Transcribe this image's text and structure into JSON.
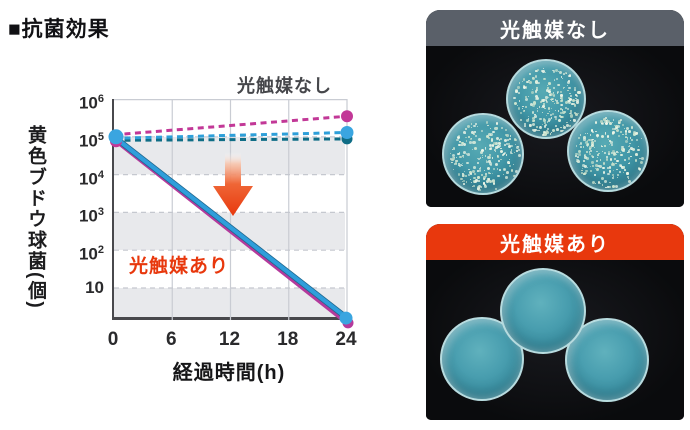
{
  "page": {
    "title": "■抗菌効果"
  },
  "chart": {
    "ylabel": "黄色ブドウ球菌(個)",
    "xlabel": "経過時間(h)",
    "labels": {
      "without": "光触媒なし",
      "with": "光触媒あり"
    },
    "colors": {
      "with_label": "#e8380d",
      "without_label": "#46474b",
      "arrow": "#e8380d"
    }
  },
  "chart_data": {
    "type": "line",
    "title": "抗菌効果",
    "xlabel": "経過時間(h)",
    "ylabel": "黄色ブドウ球菌(個)",
    "y_scale": "log",
    "xlim": [
      0,
      24
    ],
    "ylim": [
      1,
      1000000
    ],
    "x_ticks": [
      0,
      6,
      12,
      18,
      24
    ],
    "y_ticks": [
      1000000,
      100000,
      10000,
      1000,
      100,
      10
    ],
    "grid": true,
    "annotations": [
      {
        "text": "光触媒なし",
        "applies_to": "dashed series",
        "color": "#46474b"
      },
      {
        "text": "光触媒あり",
        "applies_to": "solid series",
        "color": "#e8380d"
      },
      {
        "icon": "decrease-arrow",
        "color": "#e8380d"
      }
    ],
    "series": [
      {
        "name": "光触媒なし A",
        "style": "dashed",
        "color": "#c23897",
        "x": [
          0,
          24
        ],
        "values": [
          100000,
          350000
        ]
      },
      {
        "name": "光触媒なし B",
        "style": "dashed",
        "color": "#2e9fd9",
        "x": [
          0,
          24
        ],
        "values": [
          100000,
          130000
        ]
      },
      {
        "name": "光触媒なし C",
        "style": "dashed",
        "color": "#0f6d86",
        "x": [
          0,
          24
        ],
        "values": [
          100000,
          88000
        ]
      },
      {
        "name": "光触媒あり A",
        "style": "solid",
        "color": "#b43a9c",
        "x": [
          0,
          24
        ],
        "values": [
          100000,
          1.35
        ]
      },
      {
        "name": "光触媒あり B",
        "style": "solid",
        "color": "#2f9edb",
        "x": [
          0,
          24
        ],
        "values": [
          100000,
          1.6
        ]
      }
    ]
  },
  "panels": [
    {
      "label": "光触媒なし",
      "header_color": "#5a6069",
      "dishes": "colonies",
      "photo": "three petri dishes covered with bacterial colonies"
    },
    {
      "label": "光触媒あり",
      "header_color": "#e8380d",
      "dishes": "clean",
      "photo": "three clean petri dishes"
    }
  ]
}
